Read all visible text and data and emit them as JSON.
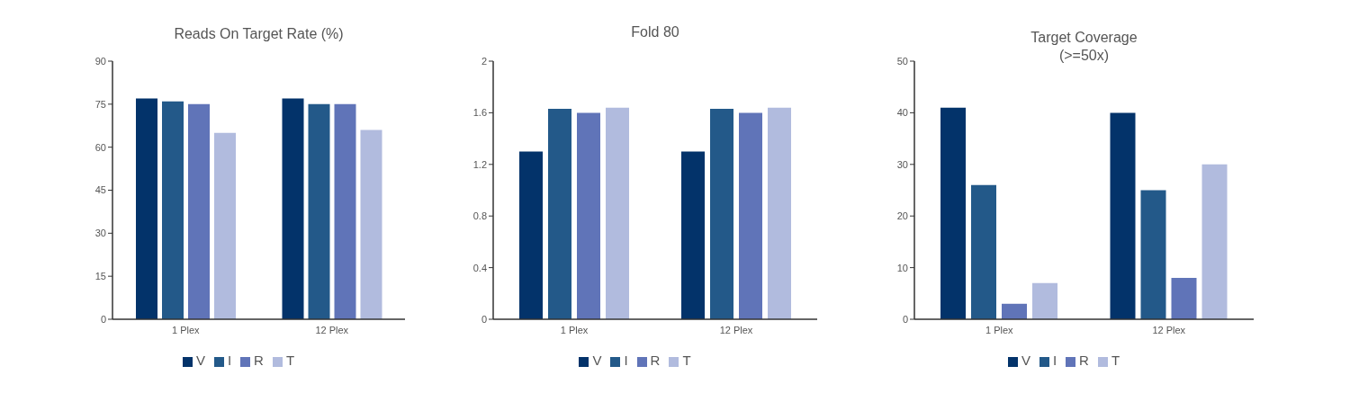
{
  "chart_data": [
    {
      "type": "bar",
      "title": "Reads On Target Rate (%)",
      "categories": [
        "1 Plex",
        "12 Plex"
      ],
      "series": [
        {
          "name": "V",
          "color": "#03336a",
          "values": [
            77,
            77
          ]
        },
        {
          "name": "I",
          "color": "#235989",
          "values": [
            76,
            75
          ]
        },
        {
          "name": "R",
          "color": "#6074b8",
          "values": [
            75,
            75
          ]
        },
        {
          "name": "T",
          "color": "#b1bbde",
          "values": [
            65,
            66
          ]
        }
      ],
      "ylim": [
        0,
        90
      ],
      "yticks": [
        0,
        15,
        30,
        45,
        60,
        75,
        90
      ],
      "legend": "bottom"
    },
    {
      "type": "bar",
      "title": "Fold 80",
      "categories": [
        "1 Plex",
        "12 Plex"
      ],
      "series": [
        {
          "name": "V",
          "color": "#03336a",
          "values": [
            1.3,
            1.3
          ]
        },
        {
          "name": "I",
          "color": "#235989",
          "values": [
            1.63,
            1.63
          ]
        },
        {
          "name": "R",
          "color": "#6074b8",
          "values": [
            1.6,
            1.6
          ]
        },
        {
          "name": "T",
          "color": "#b1bbde",
          "values": [
            1.64,
            1.64
          ]
        }
      ],
      "ylim": [
        0,
        2
      ],
      "yticks": [
        0,
        0.4,
        0.8,
        1.2,
        1.6,
        2
      ],
      "legend": "bottom"
    },
    {
      "type": "bar",
      "title": "Target Coverage\n(>=50x)",
      "categories": [
        "1 Plex",
        "12 Plex"
      ],
      "series": [
        {
          "name": "V",
          "color": "#03336a",
          "values": [
            41,
            40
          ]
        },
        {
          "name": "I",
          "color": "#235989",
          "values": [
            26,
            25
          ]
        },
        {
          "name": "R",
          "color": "#6074b8",
          "values": [
            3,
            8
          ]
        },
        {
          "name": "T",
          "color": "#b1bbde",
          "values": [
            7,
            30
          ]
        }
      ],
      "ylim": [
        0,
        50
      ],
      "yticks": [
        0,
        10,
        20,
        30,
        40,
        50
      ],
      "legend": "bottom"
    }
  ]
}
